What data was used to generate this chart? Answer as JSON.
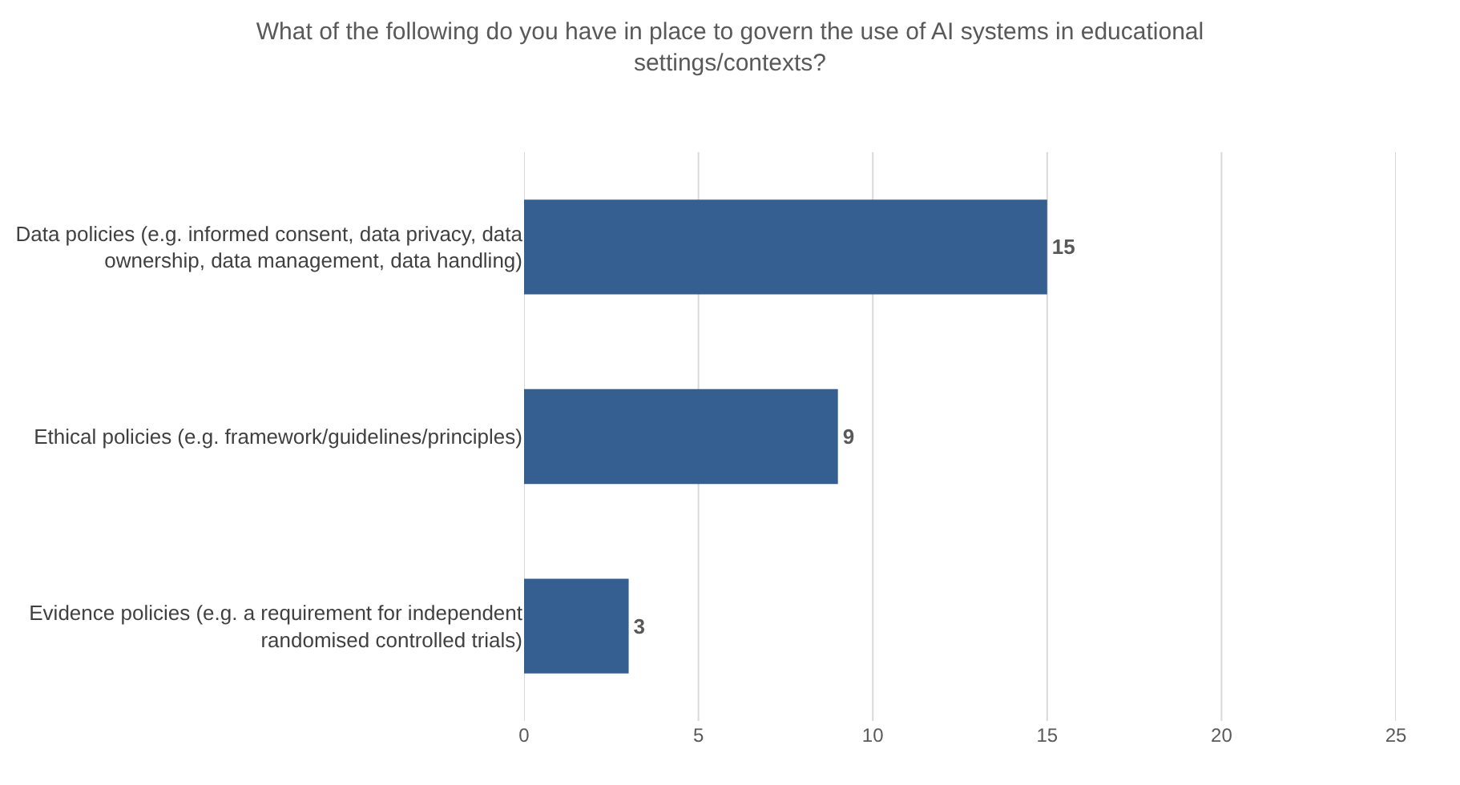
{
  "chart_data": {
    "type": "bar",
    "orientation": "horizontal",
    "title": "What of the following do you have in place to govern the use of AI systems in educational\nsettings/contexts?",
    "categories": [
      "Data policies (e.g. informed consent, data privacy, data\nownership, data management, data handling)",
      "Ethical policies (e.g. framework/guidelines/principles)",
      "Evidence policies (e.g. a requirement for independent\nrandomised controlled trials)"
    ],
    "values": [
      15,
      9,
      3
    ],
    "color": "#365f91",
    "xlim": [
      0,
      25
    ],
    "xticks": [
      0,
      5,
      10,
      15,
      20,
      25
    ],
    "grid": "x",
    "data_labels": true
  }
}
